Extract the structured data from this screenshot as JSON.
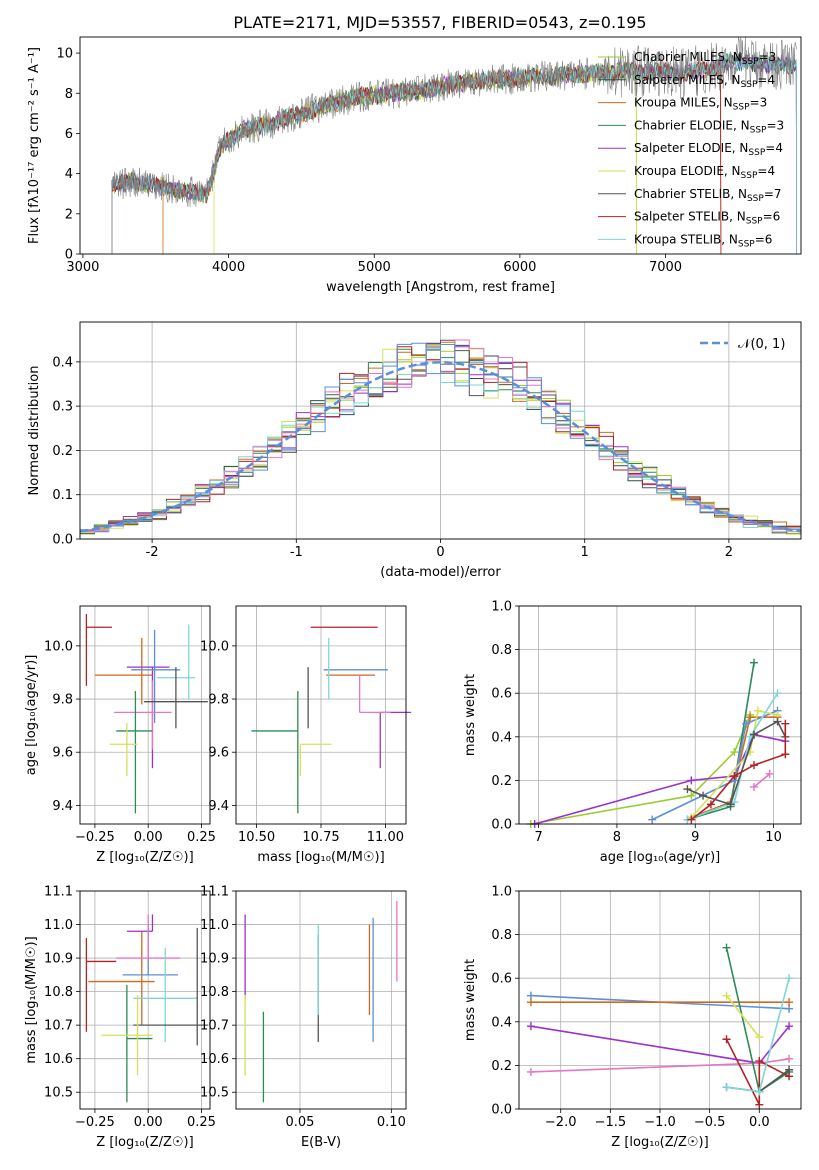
{
  "figure": {
    "title": "PLATE=2171, MJD=53557, FIBERID=0543, z=0.195"
  },
  "models": [
    {
      "name": "Chabrier MILES",
      "nssp": "3",
      "color": "#9acd32"
    },
    {
      "name": "Salpeter MILES",
      "nssp": "4",
      "color": "#2f4f4f"
    },
    {
      "name": "Kroupa MILES",
      "nssp": "3",
      "color": "#d2691e"
    },
    {
      "name": "Chabrier ELODIE",
      "nssp": "3",
      "color": "#2e8b57"
    },
    {
      "name": "Salpeter ELODIE",
      "nssp": "4",
      "color": "#9932cc"
    },
    {
      "name": "Kroupa ELODIE",
      "nssp": "4",
      "color": "#d4e157"
    },
    {
      "name": "Chabrier STELIB",
      "nssp": "7",
      "color": "#555555"
    },
    {
      "name": "Salpeter STELIB",
      "nssp": "6",
      "color": "#b22222"
    },
    {
      "name": "Kroupa STELIB",
      "nssp": "6",
      "color": "#7fd6d6"
    }
  ],
  "chart_data": [
    {
      "id": "spectrum",
      "type": "line",
      "xlabel": "wavelength [Angstrom, rest frame]",
      "ylabel": "Flux [fλ10⁻¹⁷ erg cm⁻² s⁻¹ A⁻¹]",
      "xlim": [
        2980,
        7930
      ],
      "ylim": [
        0,
        10.8
      ],
      "xticks": [
        3000,
        4000,
        5000,
        6000,
        7000
      ],
      "yticks": [
        0,
        2,
        4,
        6,
        8,
        10
      ],
      "legend": "top-right",
      "data_color": "#808080",
      "continuum": {
        "x": [
          3200,
          3350,
          3500,
          3650,
          3850,
          3950,
          4100,
          4300,
          4500,
          4700,
          4900,
          5100,
          5300,
          5500,
          5700,
          5900,
          6100,
          6300,
          6500,
          6700,
          6900,
          7100,
          7300,
          7450,
          7600,
          7900
        ],
        "y": [
          3.4,
          3.6,
          3.4,
          3.2,
          3.0,
          5.4,
          6.2,
          6.5,
          7.0,
          7.5,
          7.8,
          8.0,
          8.1,
          8.4,
          8.6,
          8.7,
          8.8,
          8.9,
          9.0,
          9.1,
          9.1,
          9.0,
          9.2,
          9.6,
          9.5,
          9.4
        ]
      }
    },
    {
      "id": "residuals",
      "type": "line",
      "xlabel": "(data-model)/error",
      "ylabel": "Normed distribution",
      "xlim": [
        -2.5,
        2.5
      ],
      "ylim": [
        0,
        0.49
      ],
      "xticks": [
        -2,
        -1,
        0,
        1,
        2
      ],
      "yticks": [
        0.0,
        0.1,
        0.2,
        0.3,
        0.4
      ],
      "grid": true,
      "legend": "top-right",
      "gaussian_label": "𝒩(0, 1)",
      "gaussian_color": "#5b8fd9"
    },
    {
      "id": "age-vs-Z",
      "type": "scatter",
      "xlabel": "Z [log₁₀(Z/Z☉)]",
      "ylabel": "age  [log₁₀(age/yr)]",
      "xlim": [
        -0.32,
        0.29
      ],
      "ylim": [
        9.33,
        10.15
      ],
      "xticks": [
        -0.25,
        0.0,
        0.25
      ],
      "xticklabels": [
        "−0.25",
        "0.00",
        "0.25"
      ],
      "yticks": [
        9.4,
        9.6,
        9.8,
        10.0
      ],
      "grid": true,
      "points": [
        {
          "color": "#b22222",
          "x": -0.29,
          "xerr": [
            0.0,
            0.12
          ],
          "y": 10.07,
          "yerr": [
            0.22,
            0.05
          ]
        },
        {
          "color": "#d2691e",
          "x": -0.03,
          "xerr": [
            0.22,
            0.05
          ],
          "y": 9.89,
          "yerr": [
            0.11,
            0.14
          ]
        },
        {
          "color": "#9932cc",
          "x": 0.02,
          "xerr": [
            0.12,
            0.08
          ],
          "y": 9.92,
          "yerr": [
            0.38,
            0.0
          ]
        },
        {
          "color": "#5b8fd9",
          "x": 0.03,
          "xerr": [
            0.11,
            0.12
          ],
          "y": 9.91,
          "yerr": [
            0.2,
            0.15
          ]
        },
        {
          "color": "#e377c2",
          "x": 0.02,
          "xerr": [
            0.18,
            0.09
          ],
          "y": 9.75,
          "yerr": [
            0.14,
            0.12
          ]
        },
        {
          "color": "#7fd6d6",
          "x": 0.19,
          "xerr": [
            0.15,
            0.03
          ],
          "y": 9.88,
          "yerr": [
            0.08,
            0.2
          ]
        },
        {
          "color": "#555555",
          "x": 0.13,
          "xerr": [
            0.15,
            0.15
          ],
          "y": 9.79,
          "yerr": [
            0.1,
            0.13
          ]
        },
        {
          "color": "#2e8b57",
          "x": -0.06,
          "xerr": [
            0.09,
            0.08
          ],
          "y": 9.68,
          "yerr": [
            0.31,
            0.15
          ]
        },
        {
          "color": "#d4e157",
          "x": -0.1,
          "xerr": [
            0.08,
            0.05
          ],
          "y": 9.63,
          "yerr": [
            0.12,
            0.08
          ]
        }
      ]
    },
    {
      "id": "age-vs-mass",
      "type": "scatter",
      "xlabel": "mass [log₁₀(M/M☉)]",
      "ylabel": "",
      "xlim": [
        10.42,
        11.08
      ],
      "ylim": [
        9.33,
        10.15
      ],
      "xticks": [
        10.5,
        10.75,
        11.0
      ],
      "xticklabels": [
        "10.50",
        "10.75",
        "11.00"
      ],
      "yticks": [
        9.4,
        9.6,
        9.8,
        10.0
      ],
      "grid": true,
      "points": [
        {
          "color": "#b22222",
          "x": 10.85,
          "xerr": [
            0.14,
            0.12
          ],
          "y": 10.07,
          "yerr": [
            0.0,
            0.0
          ]
        },
        {
          "color": "#d2691e",
          "x": 10.84,
          "xerr": [
            0.07,
            0.12
          ],
          "y": 9.89,
          "yerr": [
            0.0,
            0.0
          ]
        },
        {
          "color": "#9932cc",
          "x": 10.98,
          "xerr": [
            0.0,
            0.12
          ],
          "y": 9.75,
          "yerr": [
            0.21,
            0.0
          ]
        },
        {
          "color": "#5b8fd9",
          "x": 10.86,
          "xerr": [
            0.1,
            0.15
          ],
          "y": 9.91,
          "yerr": [
            0.0,
            0.0
          ]
        },
        {
          "color": "#e377c2",
          "x": 10.9,
          "xerr": [
            0.0,
            0.12
          ],
          "y": 9.75,
          "yerr": [
            0.0,
            0.14
          ]
        },
        {
          "color": "#7fd6d6",
          "x": 10.78,
          "xerr": [
            0.0,
            0.0
          ],
          "y": 9.88,
          "yerr": [
            0.08,
            0.15
          ]
        },
        {
          "color": "#555555",
          "x": 10.7,
          "xerr": [
            0.0,
            0.0
          ],
          "y": 9.79,
          "yerr": [
            0.1,
            0.13
          ]
        },
        {
          "color": "#2e8b57",
          "x": 10.66,
          "xerr": [
            0.18,
            0.0
          ],
          "y": 9.68,
          "yerr": [
            0.31,
            0.15
          ]
        },
        {
          "color": "#d4e157",
          "x": 10.67,
          "xerr": [
            0.0,
            0.12
          ],
          "y": 9.63,
          "yerr": [
            0.12,
            0.0
          ]
        }
      ]
    },
    {
      "id": "mass-weight-vs-age",
      "type": "line",
      "xlabel": "age  [log₁₀(age/yr)]",
      "ylabel": "mass weight",
      "xlim": [
        6.75,
        10.35
      ],
      "ylim": [
        0,
        1.0
      ],
      "xticks": [
        7,
        8,
        9,
        10
      ],
      "yticks": [
        0.0,
        0.2,
        0.4,
        0.6,
        0.8,
        1.0
      ],
      "grid": true,
      "series": [
        {
          "color": "#9acd32",
          "x": [
            6.9,
            8.95,
            9.5,
            9.7
          ],
          "y": [
            0.0,
            0.13,
            0.33,
            0.5
          ]
        },
        {
          "color": "#d2691e",
          "x": [
            8.95,
            9.45,
            9.7,
            10.05
          ],
          "y": [
            0.03,
            0.1,
            0.49,
            0.49
          ]
        },
        {
          "color": "#9932cc",
          "x": [
            6.95,
            8.95,
            9.5,
            9.75,
            10.15
          ],
          "y": [
            0.0,
            0.2,
            0.22,
            0.41,
            0.38
          ]
        },
        {
          "color": "#2e8b57",
          "x": [
            8.9,
            9.45,
            9.75
          ],
          "y": [
            0.02,
            0.08,
            0.74
          ]
        },
        {
          "color": "#5b8fd9",
          "x": [
            8.45,
            9.5,
            9.65,
            10.05
          ],
          "y": [
            0.02,
            0.2,
            0.46,
            0.52
          ]
        },
        {
          "color": "#d4e157",
          "x": [
            8.95,
            9.7,
            9.8,
            10.05
          ],
          "y": [
            0.03,
            0.33,
            0.52,
            0.5
          ]
        },
        {
          "color": "#7fd6d6",
          "x": [
            8.9,
            9.5,
            9.7,
            10.05
          ],
          "y": [
            0.02,
            0.1,
            0.4,
            0.6
          ]
        },
        {
          "color": "#555555",
          "x": [
            8.9,
            9.1,
            9.45,
            9.75,
            10.05,
            10.15
          ],
          "y": [
            0.16,
            0.13,
            0.09,
            0.41,
            0.47,
            0.4
          ]
        },
        {
          "color": "#b22222",
          "x": [
            8.95,
            9.2,
            9.5,
            9.75,
            10.15,
            10.15
          ],
          "y": [
            0.02,
            0.09,
            0.22,
            0.27,
            0.32,
            0.46
          ]
        },
        {
          "color": "#e377c2",
          "x": [
            9.75,
            9.95
          ],
          "y": [
            0.17,
            0.23
          ]
        }
      ]
    },
    {
      "id": "mass-vs-Z",
      "type": "scatter",
      "xlabel": "Z [log₁₀(Z/Z☉)]",
      "ylabel": "mass [log₁₀(M/M☉)]",
      "xlim": [
        -0.32,
        0.29
      ],
      "ylim": [
        10.45,
        11.1
      ],
      "xticks": [
        -0.25,
        0.0,
        0.25
      ],
      "xticklabels": [
        "−0.25",
        "0.00",
        "0.25"
      ],
      "yticks": [
        10.5,
        10.6,
        10.7,
        10.8,
        10.9,
        11.0,
        11.1
      ],
      "grid": true,
      "points": [
        {
          "color": "#b22222",
          "x": -0.29,
          "xerr": [
            0.0,
            0.14
          ],
          "y": 10.89,
          "yerr": [
            0.21,
            0.07
          ]
        },
        {
          "color": "#d2691e",
          "x": -0.03,
          "xerr": [
            0.25,
            0.06
          ],
          "y": 10.83,
          "yerr": [
            0.13,
            0.15
          ]
        },
        {
          "color": "#9932cc",
          "x": 0.02,
          "xerr": [
            0.12,
            0.0
          ],
          "y": 10.98,
          "yerr": [
            0.0,
            0.05
          ]
        },
        {
          "color": "#5b8fd9",
          "x": 0.0,
          "xerr": [
            0.12,
            0.14
          ],
          "y": 10.85,
          "yerr": [
            0.0,
            0.15
          ]
        },
        {
          "color": "#e377c2",
          "x": 0.0,
          "xerr": [
            0.15,
            0.15
          ],
          "y": 10.9,
          "yerr": [
            0.0,
            0.13
          ]
        },
        {
          "color": "#7fd6d6",
          "x": 0.08,
          "xerr": [
            0.15,
            0.15
          ],
          "y": 10.78,
          "yerr": [
            0.13,
            0.15
          ]
        },
        {
          "color": "#555555",
          "x": 0.23,
          "xerr": [
            0.3,
            0.05
          ],
          "y": 10.7,
          "yerr": [
            0.06,
            0.29
          ]
        },
        {
          "color": "#2e8b57",
          "x": -0.1,
          "xerr": [
            0.0,
            0.12
          ],
          "y": 10.66,
          "yerr": [
            0.19,
            0.16
          ]
        },
        {
          "color": "#d4e157",
          "x": -0.05,
          "xerr": [
            0.17,
            0.07
          ],
          "y": 10.67,
          "yerr": [
            0.12,
            0.12
          ]
        }
      ]
    },
    {
      "id": "mass-vs-ebv",
      "type": "scatter",
      "xlabel": "E(B-V)",
      "ylabel": "",
      "xlim": [
        0.015,
        0.108
      ],
      "ylim": [
        10.45,
        11.1
      ],
      "xticks": [
        0.05,
        0.1
      ],
      "xticklabels": [
        "0.05",
        "0.10"
      ],
      "yticks": [
        10.5,
        10.6,
        10.7,
        10.8,
        10.9,
        11.0,
        11.1
      ],
      "grid": true,
      "points": [
        {
          "color": "#9932cc",
          "x": 0.02,
          "xerr": [
            0,
            0
          ],
          "y": 10.89,
          "yerr": [
            0.11,
            0.14
          ]
        },
        {
          "color": "#d4e157",
          "x": 0.02,
          "xerr": [
            0,
            0
          ],
          "y": 10.67,
          "yerr": [
            0.12,
            0.12
          ]
        },
        {
          "color": "#2e8b57",
          "x": 0.03,
          "xerr": [
            0,
            0
          ],
          "y": 10.66,
          "yerr": [
            0.19,
            0.08
          ]
        },
        {
          "color": "#555555",
          "x": 0.06,
          "xerr": [
            0,
            0
          ],
          "y": 10.85,
          "yerr": [
            0.2,
            0.12
          ]
        },
        {
          "color": "#7fd6d6",
          "x": 0.06,
          "xerr": [
            0,
            0
          ],
          "y": 10.88,
          "yerr": [
            0.15,
            0.12
          ]
        },
        {
          "color": "#d2691e",
          "x": 0.088,
          "xerr": [
            0,
            0
          ],
          "y": 10.88,
          "yerr": [
            0.15,
            0.12
          ]
        },
        {
          "color": "#5b8fd9",
          "x": 0.09,
          "xerr": [
            0,
            0
          ],
          "y": 10.85,
          "yerr": [
            0.2,
            0.17
          ]
        },
        {
          "color": "#e377c2",
          "x": 0.103,
          "xerr": [
            0,
            0
          ],
          "y": 10.95,
          "yerr": [
            0.12,
            0.12
          ]
        }
      ]
    },
    {
      "id": "mass-weight-vs-Z",
      "type": "line",
      "xlabel": "Z [log₁₀(Z/Z☉)]",
      "ylabel": "mass weight",
      "xlim": [
        -2.42,
        0.42
      ],
      "ylim": [
        0,
        1.0
      ],
      "xticks": [
        -2.0,
        -1.5,
        -1.0,
        -0.5,
        0.0
      ],
      "xticklabels": [
        "−2.0",
        "−1.5",
        "−1.0",
        "−0.5",
        "0.0"
      ],
      "yticks": [
        0.0,
        0.2,
        0.4,
        0.6,
        0.8,
        1.0
      ],
      "grid": true,
      "series": [
        {
          "color": "#5b8fd9",
          "x": [
            -2.3,
            0.3
          ],
          "y": [
            0.52,
            0.46
          ]
        },
        {
          "color": "#d2691e",
          "x": [
            -2.3,
            0.3
          ],
          "y": [
            0.49,
            0.49
          ]
        },
        {
          "color": "#9932cc",
          "x": [
            -2.3,
            0.0,
            0.3
          ],
          "y": [
            0.38,
            0.21,
            0.38
          ]
        },
        {
          "color": "#e377c2",
          "x": [
            -2.3,
            0.0,
            0.3
          ],
          "y": [
            0.17,
            0.21,
            0.23
          ]
        },
        {
          "color": "#2e8b57",
          "x": [
            -0.33,
            0.0,
            0.3
          ],
          "y": [
            0.74,
            0.08,
            0.17
          ]
        },
        {
          "color": "#d4e157",
          "x": [
            -0.33,
            0.0
          ],
          "y": [
            0.52,
            0.33
          ]
        },
        {
          "color": "#b22222",
          "x": [
            -0.33,
            0.0,
            0.0,
            0.3
          ],
          "y": [
            0.32,
            0.02,
            0.22,
            0.15
          ]
        },
        {
          "color": "#555555",
          "x": [
            -0.33,
            0.0,
            0.3
          ],
          "y": [
            0.1,
            0.08,
            0.18
          ]
        },
        {
          "color": "#7fd6d6",
          "x": [
            -0.33,
            0.0,
            0.3
          ],
          "y": [
            0.1,
            0.08,
            0.6
          ]
        }
      ]
    }
  ]
}
